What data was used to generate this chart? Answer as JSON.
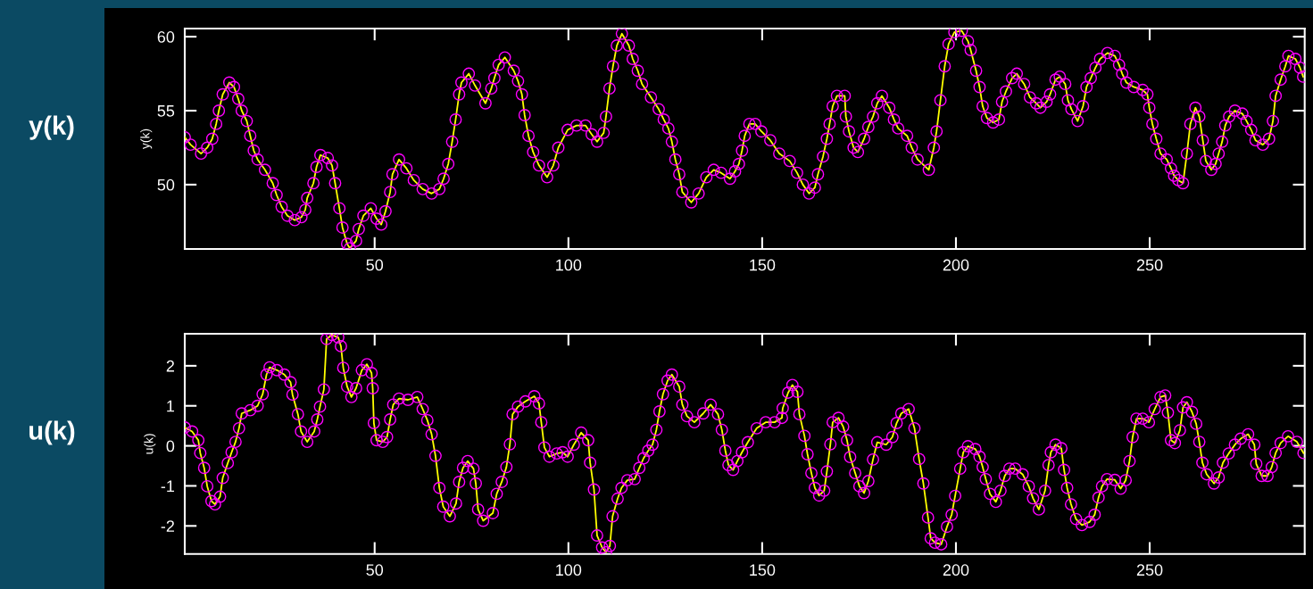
{
  "chart_data": [
    {
      "type": "line",
      "ylabel": "y(k)",
      "annotations": [
        "y(k)"
      ],
      "xlim": [
        1,
        290
      ],
      "ylim": [
        45.65,
        60.55
      ],
      "xticks": [
        50,
        100,
        150,
        200,
        250
      ],
      "yticks": [
        50,
        55,
        60
      ],
      "grid": false,
      "marker": "circle",
      "line_style": "solid",
      "series": [
        {
          "color": "#ffff00",
          "x": [
            1,
            2.5,
            5.2,
            6.8,
            8.1,
            9.1,
            9.8,
            10.8,
            12.5,
            13.7,
            14.8,
            15.7,
            17,
            17.9,
            18.8,
            19.8,
            21.7,
            23.7,
            24.7,
            26,
            27.5,
            29.4,
            31.1,
            32.1,
            32.6,
            34.2,
            35,
            36,
            37.9,
            39,
            39.8,
            40.9,
            41.7,
            42.9,
            43.6,
            45.2,
            45.9,
            47.1,
            49,
            50.5,
            51.7,
            52.8,
            54,
            54.6,
            56.3,
            58.2,
            60.1,
            62.4,
            64.7,
            66.7,
            67.8,
            69,
            70,
            70.9,
            71.8,
            72.4,
            74.3,
            75.9,
            78.6,
            80.1,
            80.9,
            82,
            83.6,
            85.9,
            87,
            88,
            88.7,
            89.7,
            90.9,
            92.4,
            94.5,
            96.1,
            97.4,
            99.8,
            102.1,
            104.4,
            106,
            107.4,
            109.1,
            109.7,
            110.6,
            111.5,
            112.5,
            113.8,
            115.6,
            116.6,
            117.9,
            119,
            121.3,
            123.3,
            124.6,
            125.8,
            126.7,
            127.6,
            128.6,
            129.4,
            131.7,
            133.6,
            135.6,
            137.5,
            139.4,
            141.7,
            143,
            144,
            144.8,
            145.5,
            146.7,
            148.2,
            149.8,
            152.1,
            154.4,
            157.1,
            159,
            160.5,
            162.1,
            163.6,
            164.4,
            165.7,
            166.7,
            167.4,
            168.2,
            169.3,
            171.3,
            171.6,
            172.4,
            173.6,
            174.7,
            176.3,
            177.4,
            178.6,
            179.7,
            180.9,
            182.8,
            184,
            185.1,
            187.4,
            188.6,
            190.1,
            193,
            194.3,
            195,
            196,
            197.1,
            198.1,
            199.6,
            201.5,
            203.1,
            203.8,
            205.2,
            206.1,
            206.9,
            208,
            209.6,
            211.1,
            211.9,
            212.9,
            214.5,
            215.7,
            217.6,
            219.1,
            220.7,
            221.8,
            223.4,
            224.3,
            225.7,
            226.8,
            228.2,
            228.9,
            229.8,
            231.4,
            232.8,
            233.7,
            234.8,
            236,
            237.2,
            239.1,
            241,
            242.1,
            242.9,
            244,
            245.9,
            248.2,
            249.4,
            249.9,
            250.7,
            251.7,
            252.8,
            254.4,
            255.5,
            256.3,
            257.4,
            258.6,
            259.6,
            260.5,
            261.8,
            262.8,
            263.7,
            264.5,
            265.9,
            267,
            267.8,
            268.7,
            269.5,
            270.5,
            272,
            273.9,
            275,
            276.2,
            277.3,
            279.2,
            280.8,
            281.8,
            282.5,
            283.8,
            285,
            285.8,
            287.6,
            288.8,
            289.6
          ],
          "values": [
            53.2,
            52.7,
            52.1,
            52.5,
            53.1,
            54.1,
            55.0,
            56.1,
            56.9,
            56.6,
            55.8,
            55.0,
            54.3,
            53.3,
            52.3,
            51.7,
            51.0,
            50.1,
            49.3,
            48.5,
            47.9,
            47.6,
            47.8,
            48.3,
            49.1,
            50.1,
            51.2,
            52.0,
            51.8,
            51.3,
            50.1,
            48.4,
            47.1,
            46.0,
            45.7,
            46.2,
            47.0,
            47.9,
            48.4,
            47.7,
            47.3,
            48.2,
            49.5,
            50.7,
            51.7,
            51.1,
            50.3,
            49.7,
            49.4,
            49.7,
            50.4,
            51.4,
            52.9,
            54.4,
            56.1,
            56.9,
            57.5,
            56.7,
            55.5,
            56.5,
            57.2,
            58.1,
            58.6,
            57.7,
            57.0,
            56.1,
            54.7,
            53.3,
            52.2,
            51.3,
            50.5,
            51.3,
            52.5,
            53.7,
            54.0,
            54.0,
            53.4,
            52.9,
            53.5,
            54.6,
            56.5,
            58.0,
            59.4,
            60.2,
            59.4,
            58.5,
            57.7,
            56.8,
            55.9,
            55.1,
            54.4,
            53.8,
            52.9,
            51.7,
            50.7,
            49.5,
            48.8,
            49.4,
            50.5,
            51.0,
            50.8,
            50.4,
            50.9,
            51.4,
            52.3,
            53.3,
            54.1,
            54.1,
            53.6,
            53.0,
            52.1,
            51.6,
            50.8,
            50.0,
            49.4,
            49.8,
            50.7,
            51.9,
            53.1,
            54.1,
            55.3,
            56.0,
            56.0,
            54.6,
            53.6,
            52.5,
            52.2,
            53.1,
            53.9,
            54.6,
            55.5,
            56.0,
            55.2,
            54.4,
            53.8,
            53.3,
            52.5,
            51.7,
            51.0,
            52.5,
            53.6,
            55.7,
            58.0,
            59.5,
            60.3,
            60.4,
            59.7,
            59.1,
            57.7,
            56.6,
            55.3,
            54.5,
            54.2,
            54.4,
            55.6,
            56.3,
            57.2,
            57.5,
            56.8,
            55.9,
            55.5,
            55.2,
            55.6,
            56.1,
            57.1,
            57.3,
            56.8,
            55.7,
            55.1,
            54.3,
            55.3,
            56.6,
            57.2,
            57.9,
            58.5,
            58.9,
            58.7,
            58.1,
            57.5,
            56.9,
            56.6,
            56.4,
            56.1,
            55.2,
            54.1,
            53.1,
            52.1,
            51.7,
            51.1,
            50.6,
            50.3,
            50.1,
            52.1,
            54.1,
            55.2,
            54.6,
            53.0,
            51.6,
            51.0,
            51.4,
            52.1,
            52.9,
            54.0,
            54.6,
            55.0,
            54.8,
            54.3,
            53.7,
            53.0,
            52.7,
            53.1,
            54.3,
            56.0,
            57.1,
            58.0,
            58.7,
            58.5,
            57.9,
            57.3
          ]
        }
      ]
    },
    {
      "type": "line",
      "ylabel": "u(k)",
      "annotations": [
        "u(k)"
      ],
      "xlim": [
        1,
        290
      ],
      "ylim": [
        -2.7,
        2.8
      ],
      "xticks": [
        50,
        100,
        150,
        200,
        250
      ],
      "yticks": [
        -2,
        -1,
        0,
        1,
        2
      ],
      "grid": false,
      "marker": "circle",
      "line_style": "solid",
      "series": [
        {
          "color": "#ffff00",
          "x": [
            1,
            2.9,
            4.5,
            5,
            6,
            6.8,
            7.9,
            8.8,
            10.1,
            10.8,
            12.1,
            13.1,
            14.1,
            15,
            15.7,
            17.9,
            19.8,
            21.1,
            22.1,
            22.9,
            24.8,
            26.7,
            28.3,
            28.8,
            30.2,
            31,
            32.6,
            34.4,
            35.2,
            35.9,
            36.9,
            37.6,
            39,
            40.6,
            41.3,
            41.9,
            42.9,
            44,
            45.2,
            46.7,
            48,
            49.2,
            49.5,
            49.8,
            50.5,
            52.1,
            53.2,
            54,
            54.8,
            56.3,
            58.6,
            61,
            62.4,
            63.6,
            64.7,
            65.7,
            66.7,
            67.7,
            69.4,
            71,
            71.8,
            72.8,
            74,
            75.5,
            76.1,
            76.7,
            78,
            80.5,
            81.5,
            82.8,
            84,
            84.9,
            85.6,
            87,
            88.9,
            91.2,
            92.4,
            93,
            93.8,
            95.1,
            97,
            98.5,
            99.8,
            101.4,
            103.3,
            105.1,
            105.6,
            106.6,
            107.4,
            108.7,
            109.7,
            110.7,
            111.4,
            112.7,
            113.7,
            115.2,
            117.1,
            118.3,
            119.4,
            120.6,
            121.7,
            122.7,
            123.5,
            124.4,
            125.6,
            126.7,
            128.6,
            129.4,
            130.6,
            132.5,
            134.8,
            136.7,
            138.6,
            139.6,
            140.5,
            141.3,
            142.5,
            143.6,
            144.8,
            146.3,
            148.6,
            150.9,
            153.2,
            155.1,
            155.3,
            156.7,
            157.8,
            159.1,
            159.6,
            160.9,
            161.7,
            162.7,
            163.6,
            164.7,
            166,
            166.7,
            167.6,
            168.2,
            169.7,
            170.9,
            171.9,
            172.7,
            174,
            175.1,
            176.3,
            177.4,
            178.6,
            179.7,
            182,
            183.6,
            184.7,
            185.9,
            187.8,
            189.3,
            190.5,
            191.6,
            192.8,
            193.5,
            194.6,
            196.2,
            197.7,
            198.9,
            199.8,
            201.1,
            201.9,
            203.1,
            205,
            206.1,
            206.9,
            207.7,
            208.8,
            210.3,
            211.5,
            212.6,
            213.8,
            215.3,
            217.2,
            218.8,
            219.9,
            221.4,
            223,
            223.9,
            224.5,
            225.7,
            227.2,
            227.9,
            228.7,
            229.7,
            231,
            232.5,
            234.5,
            235.8,
            236.8,
            237.7,
            239,
            241,
            242.5,
            243.8,
            244.8,
            245.6,
            246.6,
            248.2,
            249.8,
            251.3,
            252.8,
            254,
            254.7,
            255.5,
            256.5,
            257.8,
            258.6,
            259.6,
            260.9,
            262,
            262.8,
            263.6,
            264.7,
            266.6,
            267.8,
            268.9,
            270.4,
            272,
            273.5,
            275.4,
            277,
            277.5,
            278.9,
            280.4,
            281.5,
            282.5,
            283.8,
            285.7,
            288,
            289.7
          ],
          "values": [
            0.46,
            0.36,
            0.14,
            -0.18,
            -0.55,
            -1.01,
            -1.38,
            -1.46,
            -1.27,
            -0.8,
            -0.43,
            -0.16,
            0.1,
            0.44,
            0.81,
            0.89,
            1.0,
            1.29,
            1.78,
            1.96,
            1.89,
            1.78,
            1.59,
            1.28,
            0.79,
            0.36,
            0.1,
            0.36,
            0.66,
            0.98,
            1.41,
            2.67,
            2.77,
            2.71,
            2.49,
            1.95,
            1.48,
            1.22,
            1.44,
            1.89,
            2.04,
            1.82,
            1.44,
            0.57,
            0.14,
            0.1,
            0.22,
            0.66,
            1.03,
            1.18,
            1.15,
            1.22,
            0.92,
            0.64,
            0.29,
            -0.25,
            -1.05,
            -1.52,
            -1.76,
            -1.44,
            -0.9,
            -0.55,
            -0.38,
            -0.57,
            -0.94,
            -1.59,
            -1.87,
            -1.68,
            -1.2,
            -0.9,
            -0.53,
            0.04,
            0.79,
            0.98,
            1.11,
            1.24,
            1.06,
            0.59,
            -0.04,
            -0.27,
            -0.19,
            -0.16,
            -0.27,
            0.03,
            0.33,
            0.14,
            -0.42,
            -1.09,
            -2.24,
            -2.54,
            -2.66,
            -2.5,
            -1.76,
            -1.32,
            -1.05,
            -0.86,
            -0.83,
            -0.55,
            -0.31,
            -0.12,
            0.03,
            0.4,
            0.86,
            1.29,
            1.63,
            1.78,
            1.48,
            1.03,
            0.74,
            0.59,
            0.81,
            1.03,
            0.79,
            0.4,
            -0.12,
            -0.48,
            -0.6,
            -0.38,
            -0.16,
            0.09,
            0.44,
            0.59,
            0.59,
            0.7,
            0.94,
            1.33,
            1.52,
            1.35,
            0.79,
            0.25,
            -0.21,
            -0.68,
            -1.05,
            -1.24,
            -1.12,
            -0.64,
            0.04,
            0.59,
            0.7,
            0.48,
            0.14,
            -0.28,
            -0.68,
            -1.01,
            -1.18,
            -0.88,
            -0.34,
            0.09,
            0.03,
            0.22,
            0.57,
            0.81,
            0.92,
            0.44,
            -0.33,
            -0.94,
            -1.79,
            -2.31,
            -2.42,
            -2.46,
            -2.02,
            -1.72,
            -1.25,
            -0.57,
            -0.16,
            -0.01,
            -0.08,
            -0.27,
            -0.53,
            -0.83,
            -1.2,
            -1.4,
            -1.12,
            -0.75,
            -0.57,
            -0.57,
            -0.71,
            -1.01,
            -1.31,
            -1.59,
            -1.12,
            -0.48,
            -0.16,
            0.03,
            -0.06,
            -0.6,
            -1.05,
            -1.46,
            -1.83,
            -1.98,
            -1.9,
            -1.72,
            -1.29,
            -1.01,
            -0.83,
            -0.85,
            -1.07,
            -0.86,
            -0.38,
            0.22,
            0.68,
            0.68,
            0.59,
            0.92,
            1.22,
            1.26,
            0.83,
            0.14,
            0.07,
            0.39,
            0.96,
            1.09,
            0.85,
            0.55,
            0.1,
            -0.42,
            -0.71,
            -0.94,
            -0.79,
            -0.42,
            -0.19,
            0.03,
            0.18,
            0.29,
            0.03,
            -0.45,
            -0.75,
            -0.75,
            -0.53,
            -0.18,
            0.07,
            0.24,
            0.1,
            -0.18
          ]
        }
      ]
    }
  ]
}
